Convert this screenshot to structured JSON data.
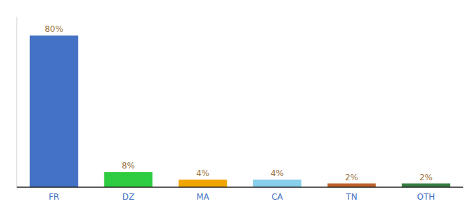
{
  "chart_data": {
    "type": "bar",
    "categories": [
      "FR",
      "DZ",
      "MA",
      "CA",
      "TN",
      "OTH"
    ],
    "values": [
      80,
      8,
      4,
      4,
      2,
      2
    ],
    "value_labels": [
      "80%",
      "8%",
      "4%",
      "4%",
      "2%",
      "2%"
    ],
    "colors": [
      "#4472c4",
      "#2ecc40",
      "#f0a500",
      "#87ceeb",
      "#c0622b",
      "#3a7d44"
    ],
    "ylim": [
      0,
      90
    ],
    "data_labels": true,
    "tick_labels": "x"
  }
}
